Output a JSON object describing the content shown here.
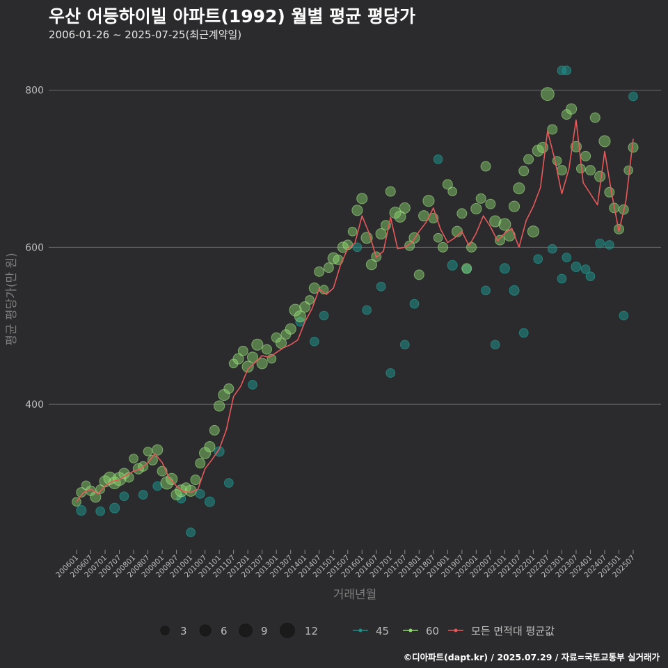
{
  "header": {
    "title": "우산 어등하이빌 아파트(1992) 월별 평균 평당가",
    "subtitle": "2006-01-26 ~ 2025-07-25(최근계약일)"
  },
  "footer": {
    "credit": "©디아파트(dapt.kr) / 2025.07.29 / 자료=국토교통부 실거래가"
  },
  "colors": {
    "background": "#2b2b2d",
    "grid": "#6e6e6e",
    "series_45": "#1f8f88",
    "series_60": "#8fdc6f",
    "avg_line": "#e8595a",
    "size_legend": "#1a1a1a"
  },
  "chart_data": {
    "type": "scatter",
    "title": "우산 어등하이빌 아파트(1992) 월별 평균 평당가",
    "subtitle": "2006-01-26 ~ 2025-07-25(최근계약일)",
    "xlabel": "거래년월",
    "ylabel": "평균 평당가(만 원)",
    "ylim": [
      215,
      835
    ],
    "yticks": [
      400,
      600,
      800
    ],
    "grid": true,
    "x_categories": [
      "200601",
      "200607",
      "200701",
      "200707",
      "200801",
      "200807",
      "200901",
      "200907",
      "201001",
      "201007",
      "201101",
      "201107",
      "201201",
      "201207",
      "201301",
      "201307",
      "201401",
      "201407",
      "201501",
      "201507",
      "201601",
      "201607",
      "201701",
      "201707",
      "201801",
      "201807",
      "201901",
      "201907",
      "202001",
      "202007",
      "202101",
      "202107",
      "202201",
      "202207",
      "202301",
      "202307",
      "202401",
      "202407",
      "202501",
      "202507"
    ],
    "legend": {
      "position": "bottom",
      "size_title": "",
      "sizes": [
        3,
        6,
        9,
        12
      ],
      "series": [
        "45",
        "60",
        "모든 면적대 평균값"
      ]
    },
    "series": [
      {
        "name": "60",
        "kind": "bubble",
        "points": [
          [
            "2006-01",
            276,
            3
          ],
          [
            "2006-03",
            288,
            4
          ],
          [
            "2006-05",
            297,
            3
          ],
          [
            "2006-07",
            290,
            4
          ],
          [
            "2006-09",
            282,
            5
          ],
          [
            "2006-11",
            292,
            3
          ],
          [
            "2007-01",
            302,
            6
          ],
          [
            "2007-03",
            306,
            8
          ],
          [
            "2007-05",
            300,
            7
          ],
          [
            "2007-07",
            305,
            9
          ],
          [
            "2007-09",
            312,
            5
          ],
          [
            "2007-11",
            307,
            4
          ],
          [
            "2008-01",
            331,
            3
          ],
          [
            "2008-03",
            318,
            5
          ],
          [
            "2008-05",
            321,
            4
          ],
          [
            "2008-07",
            340,
            3
          ],
          [
            "2008-09",
            329,
            4
          ],
          [
            "2008-11",
            342,
            5
          ],
          [
            "2009-01",
            315,
            4
          ],
          [
            "2009-03",
            300,
            8
          ],
          [
            "2009-05",
            305,
            6
          ],
          [
            "2009-07",
            285,
            5
          ],
          [
            "2009-09",
            290,
            7
          ],
          [
            "2009-11",
            294,
            4
          ],
          [
            "2010-01",
            290,
            6
          ],
          [
            "2010-03",
            304,
            4
          ],
          [
            "2010-05",
            325,
            4
          ],
          [
            "2010-07",
            338,
            6
          ],
          [
            "2010-09",
            346,
            5
          ],
          [
            "2010-11",
            367,
            4
          ],
          [
            "2011-01",
            398,
            5
          ],
          [
            "2011-03",
            412,
            6
          ],
          [
            "2011-05",
            420,
            4
          ],
          [
            "2011-07",
            452,
            3
          ],
          [
            "2011-09",
            458,
            5
          ],
          [
            "2011-11",
            468,
            4
          ],
          [
            "2012-01",
            448,
            6
          ],
          [
            "2012-03",
            460,
            5
          ],
          [
            "2012-05",
            476,
            6
          ],
          [
            "2012-07",
            452,
            5
          ],
          [
            "2012-09",
            470,
            4
          ],
          [
            "2012-11",
            458,
            3
          ],
          [
            "2013-01",
            485,
            4
          ],
          [
            "2013-03",
            478,
            5
          ],
          [
            "2013-05",
            489,
            4
          ],
          [
            "2013-07",
            496,
            5
          ],
          [
            "2013-09",
            520,
            7
          ],
          [
            "2013-11",
            512,
            6
          ],
          [
            "2014-01",
            524,
            5
          ],
          [
            "2014-03",
            533,
            3
          ],
          [
            "2014-05",
            548,
            5
          ],
          [
            "2014-07",
            569,
            4
          ],
          [
            "2014-09",
            546,
            3
          ],
          [
            "2014-11",
            574,
            4
          ],
          [
            "2015-01",
            586,
            6
          ],
          [
            "2015-03",
            584,
            4
          ],
          [
            "2015-05",
            600,
            5
          ],
          [
            "2015-07",
            603,
            4
          ],
          [
            "2015-09",
            620,
            3
          ],
          [
            "2015-11",
            647,
            5
          ],
          [
            "2016-01",
            662,
            5
          ],
          [
            "2016-03",
            612,
            6
          ],
          [
            "2016-05",
            578,
            5
          ],
          [
            "2016-07",
            588,
            4
          ],
          [
            "2016-09",
            617,
            5
          ],
          [
            "2016-11",
            628,
            4
          ],
          [
            "2017-01",
            671,
            4
          ],
          [
            "2017-03",
            644,
            6
          ],
          [
            "2017-05",
            639,
            6
          ],
          [
            "2017-07",
            650,
            5
          ],
          [
            "2017-09",
            602,
            4
          ],
          [
            "2017-11",
            612,
            5
          ],
          [
            "2018-01",
            565,
            4
          ],
          [
            "2018-03",
            640,
            5
          ],
          [
            "2018-05",
            659,
            6
          ],
          [
            "2018-07",
            637,
            4
          ],
          [
            "2018-09",
            612,
            3
          ],
          [
            "2018-11",
            600,
            4
          ],
          [
            "2019-01",
            680,
            4
          ],
          [
            "2019-03",
            671,
            3
          ],
          [
            "2019-05",
            620,
            5
          ],
          [
            "2019-07",
            643,
            4
          ],
          [
            "2019-09",
            573,
            4
          ],
          [
            "2019-11",
            600,
            4
          ],
          [
            "2020-01",
            649,
            5
          ],
          [
            "2020-03",
            662,
            4
          ],
          [
            "2020-05",
            703,
            4
          ],
          [
            "2020-07",
            655,
            4
          ],
          [
            "2020-09",
            633,
            6
          ],
          [
            "2020-11",
            609,
            4
          ],
          [
            "2021-01",
            629,
            7
          ],
          [
            "2021-03",
            615,
            6
          ],
          [
            "2021-05",
            652,
            5
          ],
          [
            "2021-07",
            675,
            6
          ],
          [
            "2021-09",
            697,
            4
          ],
          [
            "2021-11",
            712,
            4
          ],
          [
            "2022-01",
            620,
            6
          ],
          [
            "2022-03",
            723,
            6
          ],
          [
            "2022-05",
            727,
            5
          ],
          [
            "2022-07",
            795,
            9
          ],
          [
            "2022-09",
            750,
            4
          ],
          [
            "2022-11",
            710,
            3
          ],
          [
            "2023-01",
            698,
            4
          ],
          [
            "2023-03",
            769,
            4
          ],
          [
            "2023-05",
            776,
            5
          ],
          [
            "2023-07",
            728,
            5
          ],
          [
            "2023-09",
            700,
            3
          ],
          [
            "2023-11",
            716,
            4
          ],
          [
            "2024-01",
            698,
            4
          ],
          [
            "2024-03",
            765,
            4
          ],
          [
            "2024-05",
            690,
            5
          ],
          [
            "2024-07",
            735,
            6
          ],
          [
            "2024-09",
            670,
            4
          ],
          [
            "2024-11",
            650,
            4
          ],
          [
            "2025-01",
            623,
            4
          ],
          [
            "2025-03",
            648,
            4
          ],
          [
            "2025-05",
            698,
            3
          ],
          [
            "2025-07",
            727,
            4
          ]
        ]
      },
      {
        "name": "45",
        "kind": "bubble",
        "points": [
          [
            "2006-03",
            265,
            4
          ],
          [
            "2006-11",
            264,
            3
          ],
          [
            "2007-05",
            268,
            4
          ],
          [
            "2007-09",
            283,
            3
          ],
          [
            "2008-05",
            285,
            3
          ],
          [
            "2008-11",
            296,
            3
          ],
          [
            "2009-09",
            280,
            3
          ],
          [
            "2010-01",
            237,
            3
          ],
          [
            "2010-05",
            286,
            3
          ],
          [
            "2010-09",
            276,
            4
          ],
          [
            "2011-01",
            340,
            4
          ],
          [
            "2011-05",
            300,
            3
          ],
          [
            "2012-03",
            425,
            3
          ],
          [
            "2013-11",
            505,
            3
          ],
          [
            "2014-05",
            480,
            3
          ],
          [
            "2014-09",
            513,
            3
          ],
          [
            "2015-11",
            600,
            3
          ],
          [
            "2016-03",
            520,
            3
          ],
          [
            "2016-09",
            550,
            3
          ],
          [
            "2017-01",
            440,
            3
          ],
          [
            "2017-07",
            476,
            3
          ],
          [
            "2017-11",
            528,
            3
          ],
          [
            "2018-09",
            712,
            3
          ],
          [
            "2019-03",
            577,
            4
          ],
          [
            "2019-09",
            572,
            3
          ],
          [
            "2020-05",
            545,
            3
          ],
          [
            "2020-09",
            476,
            3
          ],
          [
            "2021-01",
            573,
            4
          ],
          [
            "2021-05",
            545,
            4
          ],
          [
            "2021-09",
            491,
            3
          ],
          [
            "2022-03",
            585,
            3
          ],
          [
            "2022-09",
            598,
            3
          ],
          [
            "2023-01",
            560,
            3
          ],
          [
            "2023-03",
            587,
            3
          ],
          [
            "2023-07",
            575,
            4
          ],
          [
            "2023-11",
            572,
            3
          ],
          [
            "2024-01",
            563,
            3
          ],
          [
            "2024-05",
            605,
            3
          ],
          [
            "2024-09",
            603,
            3
          ],
          [
            "2025-03",
            513,
            3
          ],
          [
            "2025-07",
            792,
            3
          ],
          [
            "2023-01",
            825,
            3
          ],
          [
            "2023-03",
            825,
            3
          ]
        ]
      },
      {
        "name": "모든 면적대 평균값",
        "kind": "line",
        "points": [
          [
            "2006-01",
            276
          ],
          [
            "2006-04",
            288
          ],
          [
            "2006-07",
            292
          ],
          [
            "2006-10",
            286
          ],
          [
            "2007-01",
            296
          ],
          [
            "2007-04",
            302
          ],
          [
            "2007-07",
            304
          ],
          [
            "2007-10",
            310
          ],
          [
            "2008-01",
            315
          ],
          [
            "2008-04",
            318
          ],
          [
            "2008-07",
            326
          ],
          [
            "2008-10",
            337
          ],
          [
            "2009-01",
            326
          ],
          [
            "2009-04",
            306
          ],
          [
            "2009-07",
            296
          ],
          [
            "2009-10",
            289
          ],
          [
            "2010-01",
            288
          ],
          [
            "2010-04",
            292
          ],
          [
            "2010-07",
            318
          ],
          [
            "2010-10",
            330
          ],
          [
            "2011-01",
            343
          ],
          [
            "2011-04",
            368
          ],
          [
            "2011-07",
            410
          ],
          [
            "2011-10",
            423
          ],
          [
            "2012-01",
            445
          ],
          [
            "2012-04",
            453
          ],
          [
            "2012-07",
            462
          ],
          [
            "2012-10",
            460
          ],
          [
            "2013-01",
            466
          ],
          [
            "2013-04",
            472
          ],
          [
            "2013-07",
            476
          ],
          [
            "2013-10",
            482
          ],
          [
            "2014-01",
            505
          ],
          [
            "2014-04",
            522
          ],
          [
            "2014-07",
            547
          ],
          [
            "2014-10",
            540
          ],
          [
            "2015-01",
            548
          ],
          [
            "2015-04",
            578
          ],
          [
            "2015-07",
            598
          ],
          [
            "2015-10",
            605
          ],
          [
            "2016-01",
            640
          ],
          [
            "2016-04",
            618
          ],
          [
            "2016-07",
            587
          ],
          [
            "2016-10",
            595
          ],
          [
            "2017-01",
            638
          ],
          [
            "2017-04",
            598
          ],
          [
            "2017-07",
            600
          ],
          [
            "2017-10",
            606
          ],
          [
            "2018-01",
            620
          ],
          [
            "2018-04",
            632
          ],
          [
            "2018-07",
            650
          ],
          [
            "2018-10",
            623
          ],
          [
            "2019-01",
            606
          ],
          [
            "2019-04",
            612
          ],
          [
            "2019-07",
            620
          ],
          [
            "2019-10",
            602
          ],
          [
            "2020-01",
            618
          ],
          [
            "2020-04",
            640
          ],
          [
            "2020-07",
            626
          ],
          [
            "2020-10",
            608
          ],
          [
            "2021-01",
            618
          ],
          [
            "2021-04",
            624
          ],
          [
            "2021-07",
            600
          ],
          [
            "2021-10",
            634
          ],
          [
            "2022-01",
            652
          ],
          [
            "2022-04",
            676
          ],
          [
            "2022-07",
            748
          ],
          [
            "2022-10",
            712
          ],
          [
            "2023-01",
            668
          ],
          [
            "2023-04",
            700
          ],
          [
            "2023-07",
            762
          ],
          [
            "2023-10",
            682
          ],
          [
            "2024-01",
            668
          ],
          [
            "2024-04",
            654
          ],
          [
            "2024-07",
            722
          ],
          [
            "2024-10",
            668
          ],
          [
            "2025-01",
            620
          ],
          [
            "2025-04",
            660
          ],
          [
            "2025-07",
            738
          ]
        ]
      }
    ]
  }
}
